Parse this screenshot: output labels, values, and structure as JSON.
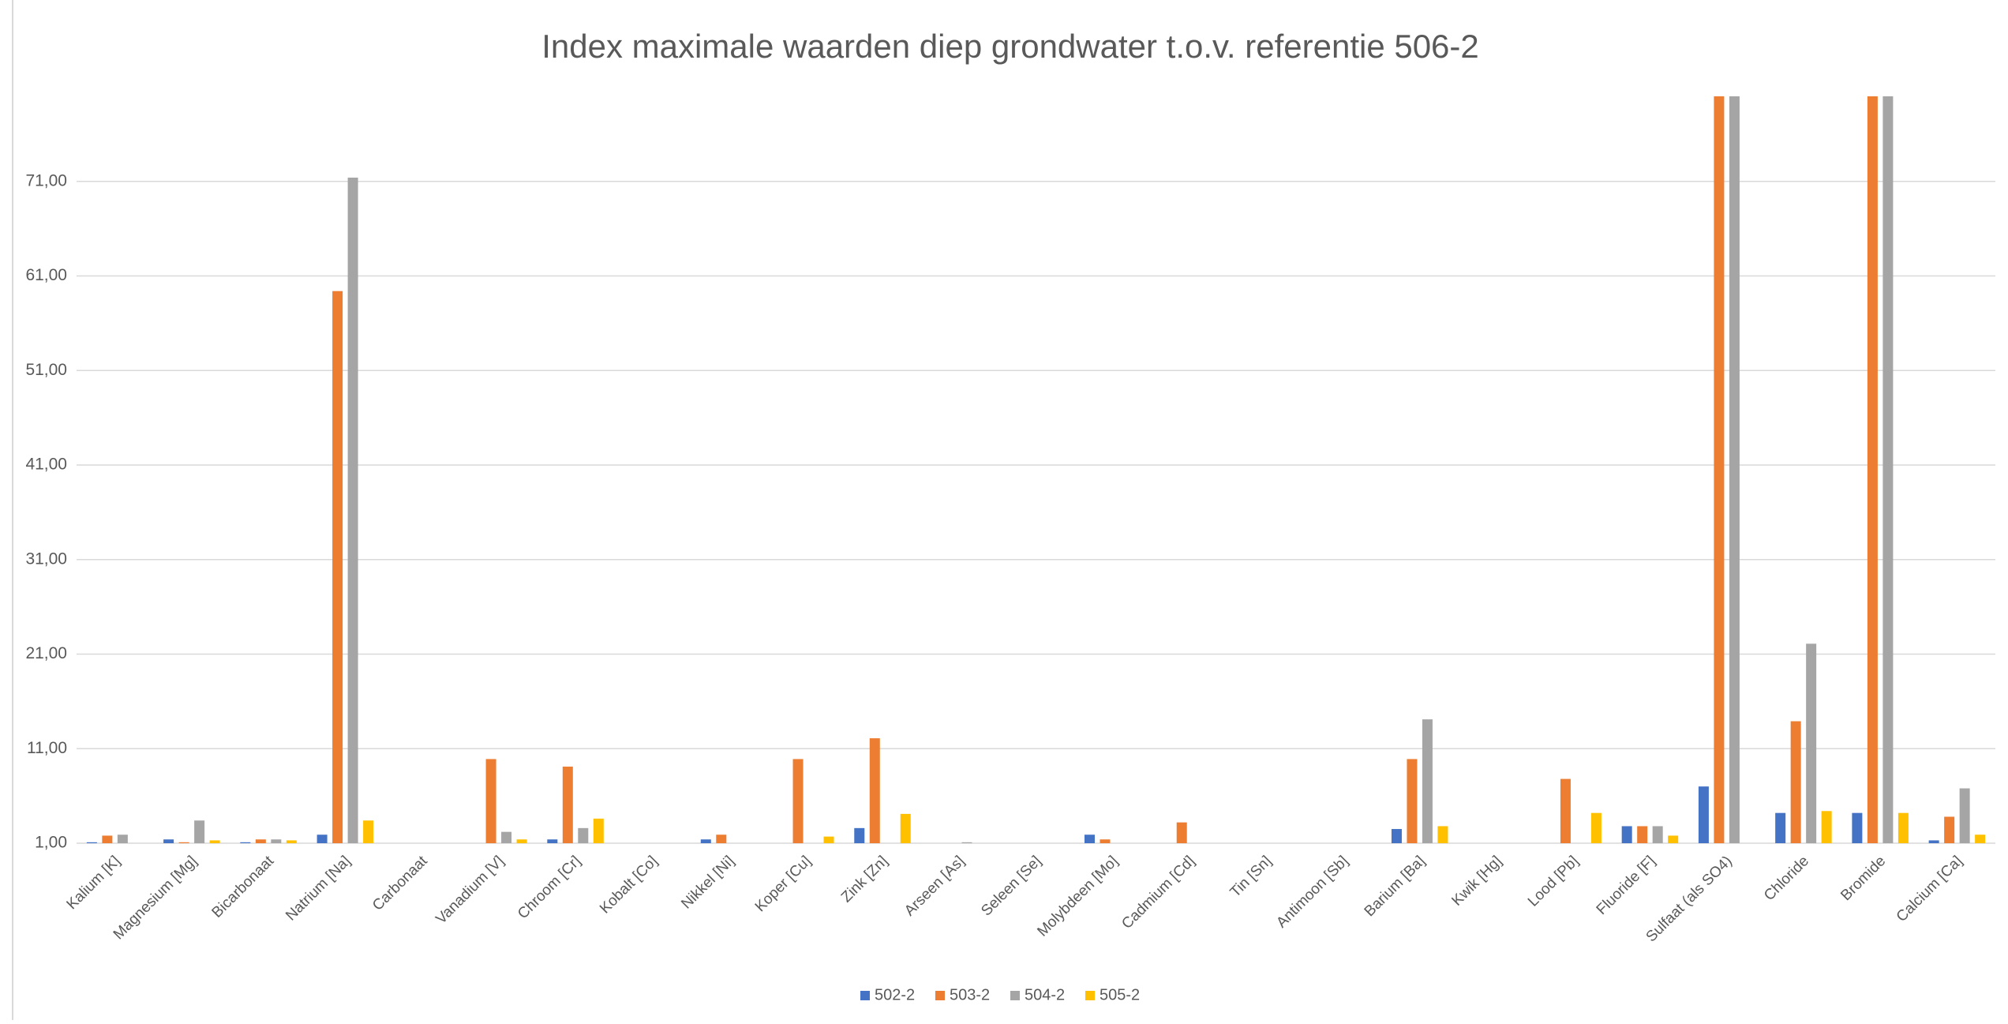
{
  "chart_data": {
    "type": "bar",
    "title": "Index maximale waarden diep grondwater t.o.v. referentie 506-2",
    "categories": [
      "Kalium [K]",
      "Magnesium [Mg]",
      "Bicarbonaat",
      "Natrium [Na]",
      "Carbonaat",
      "Vanadium [V]",
      "Chroom [Cr]",
      "Kobalt [Co]",
      "Nikkel [Ni]",
      "Koper [Cu]",
      "Zink [Zn]",
      "Arseen [As]",
      "Seleen [Se]",
      "Molybdeen [Mo]",
      "Cadmium [Cd]",
      "Tin [Sn]",
      "Antimoon [Sb]",
      "Barium [Ba]",
      "Kwik [Hg]",
      "Lood [Pb]",
      "Fluoride [F]",
      "Sulfaat (als SO4)",
      "Chloride",
      "Bromide",
      "Calcium [Ca]"
    ],
    "series": [
      {
        "name": "502-2",
        "color": "#4472c4",
        "values": [
          1.1,
          1.4,
          1.1,
          1.9,
          null,
          null,
          1.4,
          null,
          1.4,
          null,
          2.6,
          null,
          null,
          1.9,
          null,
          null,
          null,
          2.5,
          null,
          null,
          2.8,
          7.0,
          4.2,
          4.2,
          1.3
        ]
      },
      {
        "name": "503-2",
        "color": "#ed7d31",
        "values": [
          1.8,
          1.1,
          1.4,
          59.4,
          null,
          9.9,
          9.1,
          null,
          1.9,
          9.9,
          12.1,
          null,
          null,
          1.4,
          3.2,
          null,
          null,
          9.9,
          null,
          7.8,
          2.8,
          80,
          13.9,
          80,
          3.8
        ]
      },
      {
        "name": "504-2",
        "color": "#a5a5a5",
        "values": [
          1.9,
          3.4,
          1.4,
          71.4,
          null,
          2.2,
          2.6,
          null,
          null,
          null,
          null,
          1.1,
          null,
          null,
          null,
          null,
          null,
          14.1,
          null,
          null,
          2.8,
          80,
          22.1,
          80,
          6.8
        ]
      },
      {
        "name": "505-2",
        "color": "#ffc000",
        "values": [
          null,
          1.3,
          1.3,
          3.4,
          null,
          1.4,
          3.6,
          null,
          null,
          1.7,
          4.1,
          null,
          null,
          null,
          null,
          null,
          null,
          2.8,
          null,
          4.2,
          1.8,
          null,
          4.4,
          4.2,
          1.9
        ]
      }
    ],
    "ylim": [
      1,
      80
    ],
    "yticks": [
      {
        "value": 1,
        "label": "1,00"
      },
      {
        "value": 11,
        "label": "11,00"
      },
      {
        "value": 21,
        "label": "21,00"
      },
      {
        "value": 31,
        "label": "31,00"
      },
      {
        "value": 41,
        "label": "41,00"
      },
      {
        "value": 51,
        "label": "51,00"
      },
      {
        "value": 61,
        "label": "61,00"
      },
      {
        "value": 71,
        "label": "71,00"
      }
    ],
    "grid": true,
    "legend": "bottom"
  }
}
